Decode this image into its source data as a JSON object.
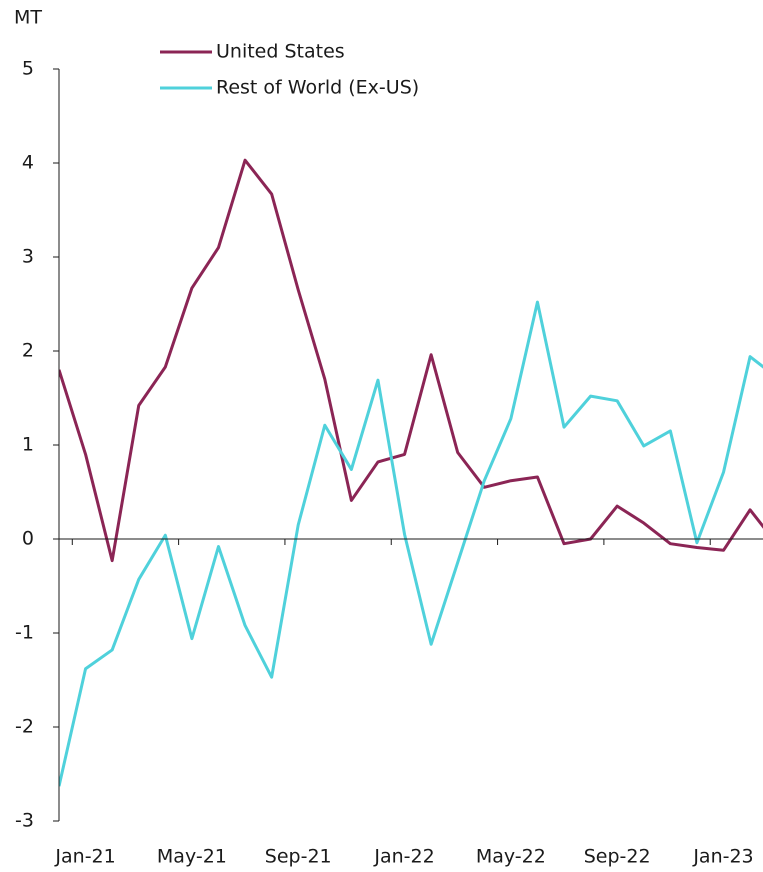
{
  "chart_data": {
    "type": "line",
    "y_label": "MT",
    "categories": [
      null,
      "Jan-21",
      null,
      null,
      null,
      "May-21",
      null,
      null,
      null,
      "Sep-21",
      null,
      null,
      null,
      "Jan-22",
      null,
      null,
      null,
      "May-22",
      null,
      null,
      null,
      "Sep-22",
      null,
      null,
      null,
      "Jan-23",
      null,
      null
    ],
    "series": [
      {
        "name": "United States",
        "color": "#8b2555",
        "values": [
          1.8,
          0.9,
          -0.23,
          1.42,
          1.83,
          2.67,
          3.1,
          4.03,
          3.67,
          2.65,
          1.7,
          0.41,
          0.82,
          0.9,
          1.96,
          0.92,
          0.55,
          0.62,
          0.66,
          -0.05,
          0.0,
          0.35,
          0.17,
          -0.05,
          -0.09,
          -0.12,
          0.31,
          -0.05
        ]
      },
      {
        "name": "Rest of World (Ex-US)",
        "color": "#4fd1db",
        "values": [
          -2.63,
          -1.38,
          -1.18,
          -0.43,
          0.04,
          -1.06,
          -0.08,
          -0.92,
          -1.47,
          0.15,
          1.21,
          0.74,
          1.69,
          0.05,
          -1.12,
          -0.25,
          0.62,
          1.28,
          2.52,
          1.19,
          1.52,
          1.47,
          0.99,
          1.15,
          -0.04,
          0.71,
          1.94,
          1.72
        ]
      }
    ],
    "ylim": [
      -3,
      5
    ],
    "yticks": [
      -3,
      -2,
      -1,
      0,
      1,
      2,
      3,
      4,
      5
    ],
    "legend": "top"
  }
}
